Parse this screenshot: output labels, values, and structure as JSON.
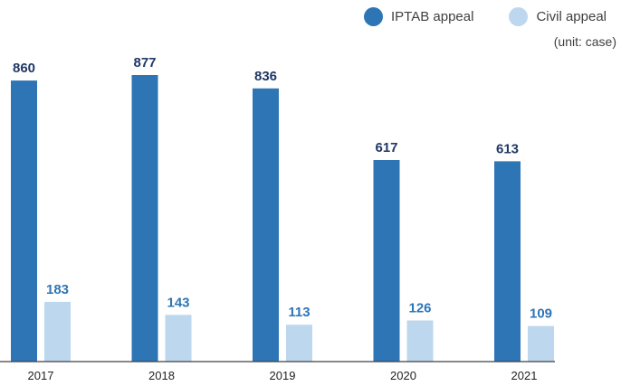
{
  "chart_data": {
    "type": "bar",
    "categories": [
      "2017",
      "2018",
      "2019",
      "2020",
      "2021"
    ],
    "series": [
      {
        "name": "IPTAB appeal",
        "values": [
          860,
          877,
          836,
          617,
          613
        ],
        "color": "#2e75b6",
        "label_color": "#1f3864"
      },
      {
        "name": "Civil appeal",
        "values": [
          183,
          143,
          113,
          126,
          109
        ],
        "color": "#bdd7ee",
        "label_color": "#2e75b6"
      }
    ],
    "unit_note": "(unit: case)",
    "ylim": [
      0,
      1000
    ],
    "grid": false,
    "legend_position": "top-right"
  }
}
